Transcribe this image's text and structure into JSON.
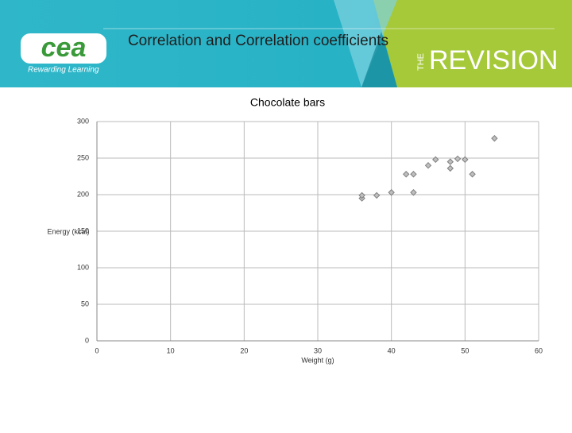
{
  "header": {
    "title": "Correlation and Correlation coefficients",
    "logo": "cea",
    "tagline": "Rewarding Learning",
    "brand_prefix": "THE",
    "brand": "REVISION"
  },
  "chart_data": {
    "type": "scatter",
    "title": "Chocolate bars",
    "x_label": "Weight (g)",
    "y_label": "Energy (kcal)",
    "series": [
      {
        "name": "Chocolate bars",
        "color": "#7f7f7f",
        "x": [
          36,
          36,
          38,
          40,
          42,
          43,
          43,
          45,
          46,
          48,
          48,
          49,
          50,
          51,
          54
        ],
        "values": [
          195,
          199,
          199,
          203,
          228,
          228,
          203,
          240,
          248,
          245,
          236,
          249,
          248,
          228,
          277
        ]
      }
    ],
    "xlim": [
      0,
      60
    ],
    "xticks": [
      0,
      10,
      20,
      30,
      40,
      50,
      60
    ],
    "ylim": [
      0,
      300
    ],
    "yticks": [
      0,
      50,
      100,
      150,
      200,
      250,
      300
    ],
    "grid": true
  }
}
